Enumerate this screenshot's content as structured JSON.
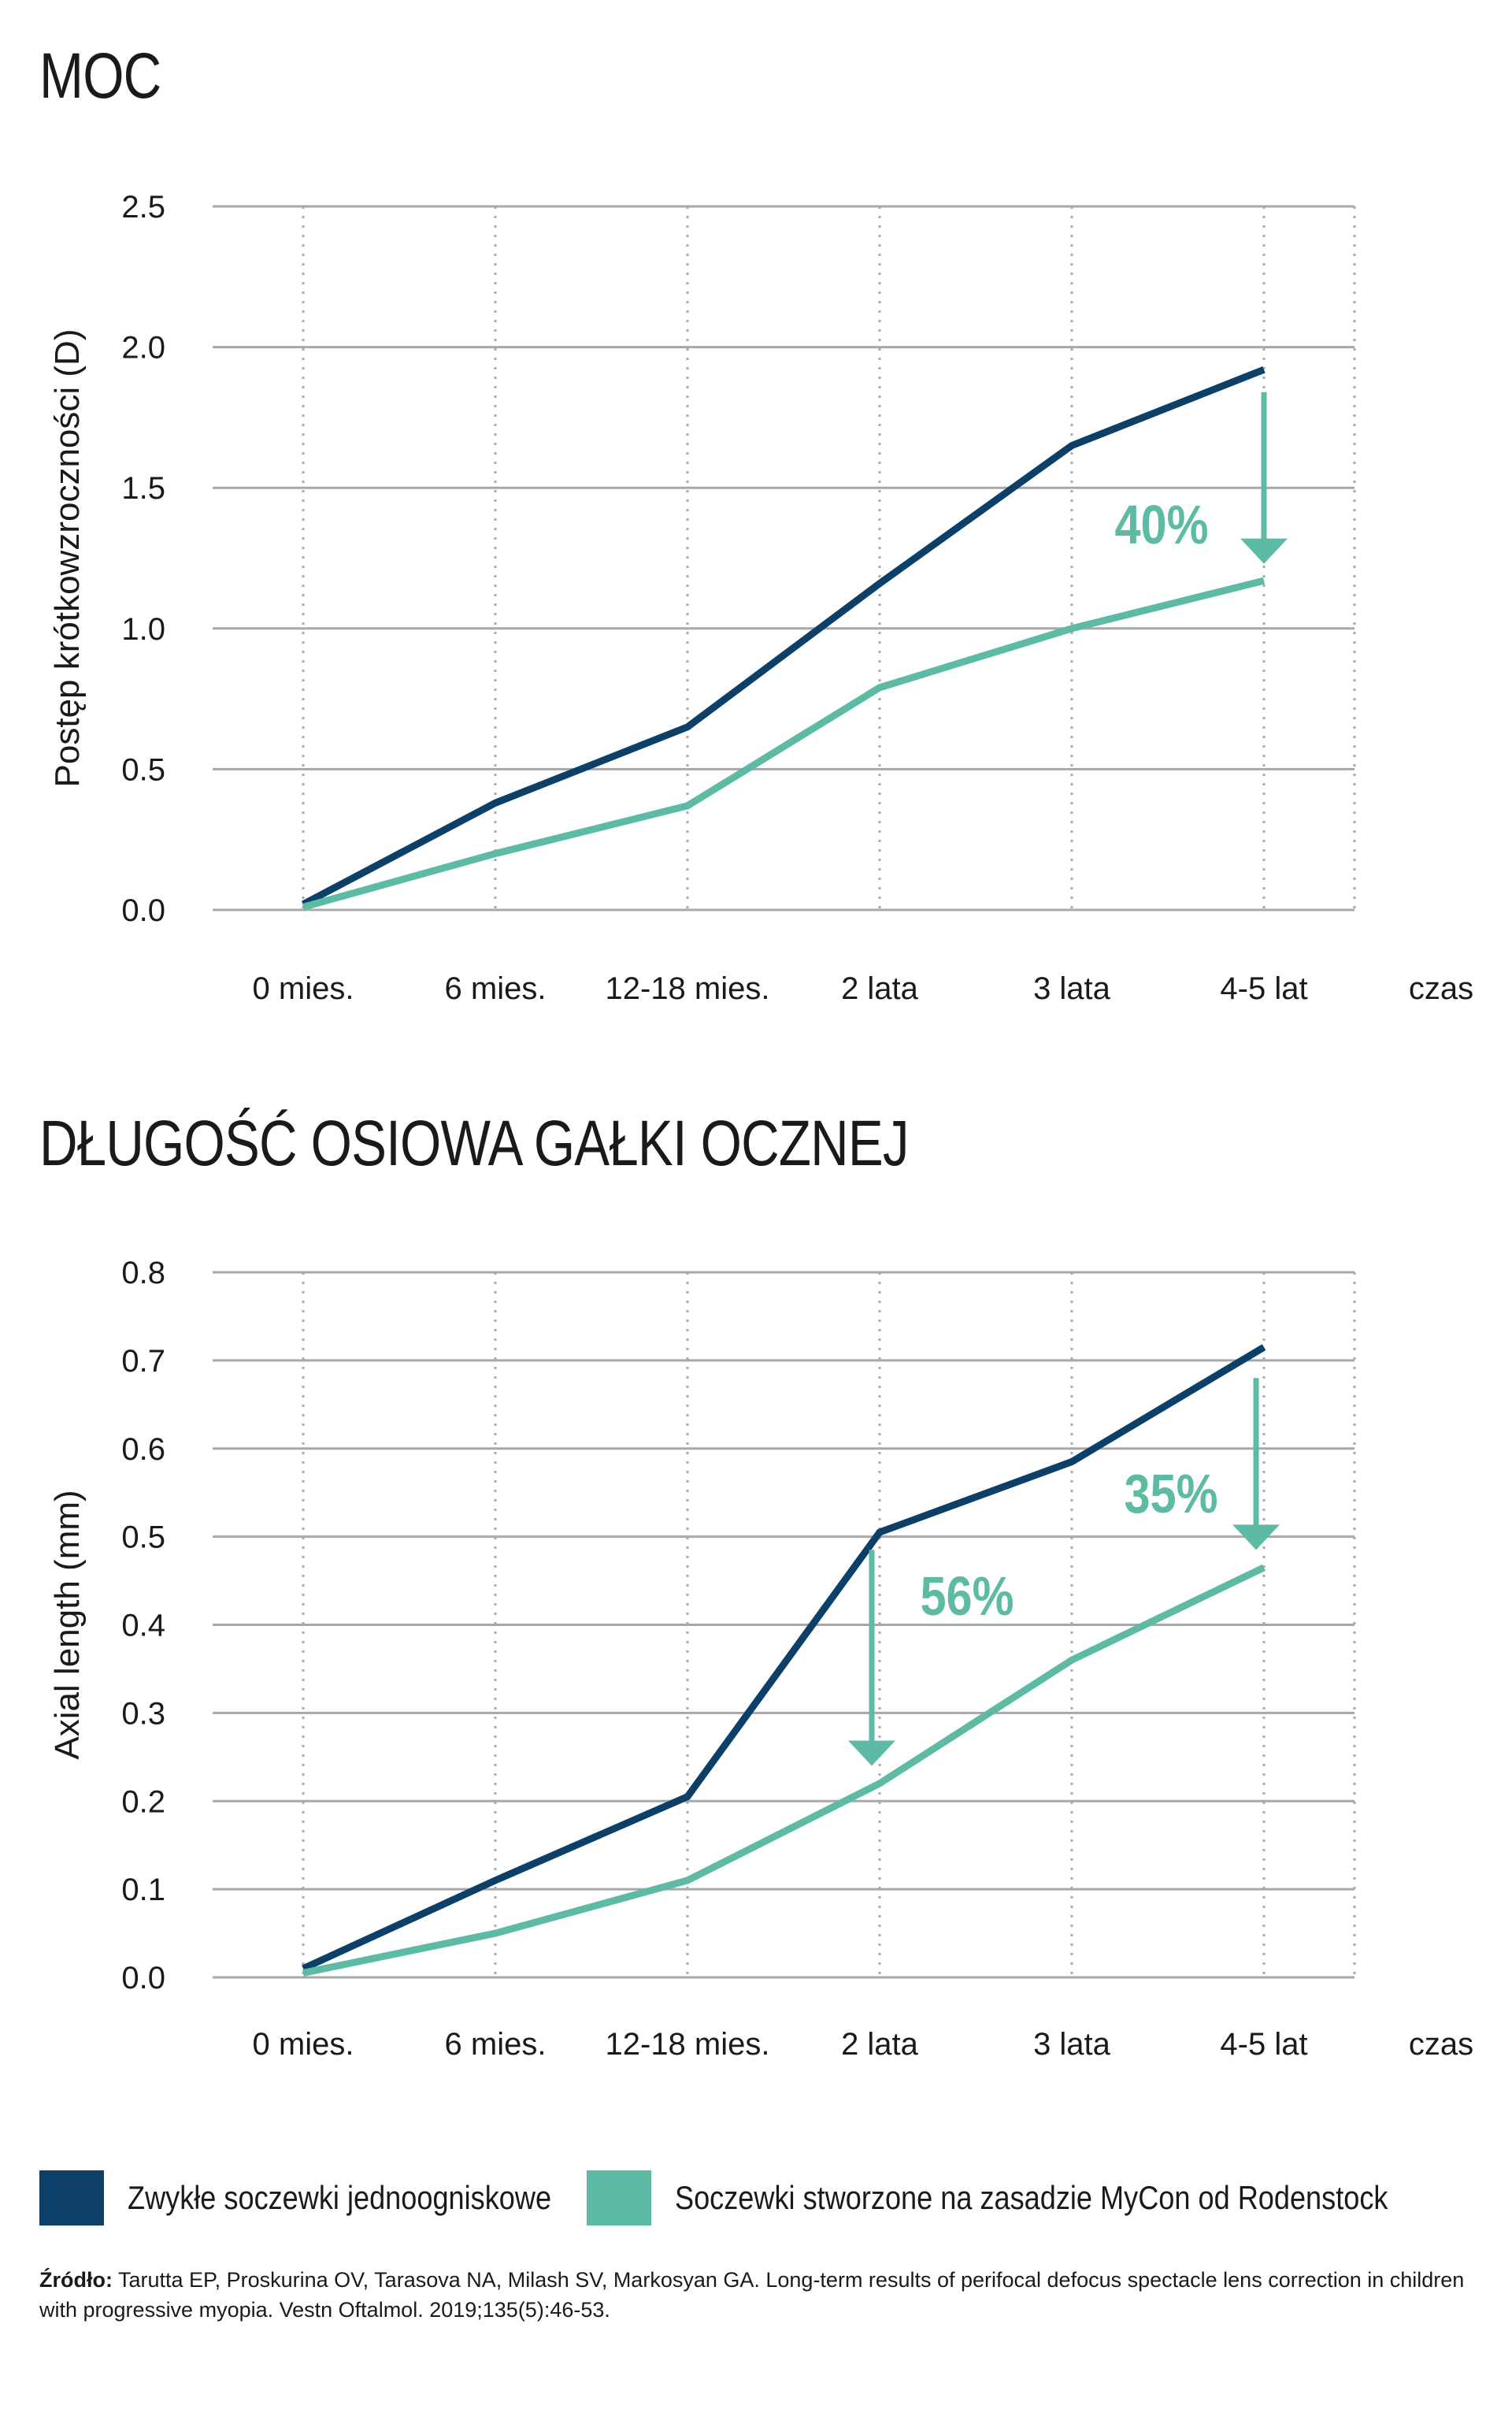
{
  "colors": {
    "standard": "#0c4068",
    "mycon": "#5dbaa4",
    "grid": "#a8a8a8"
  },
  "chart_data": [
    {
      "type": "line",
      "title": "MOC",
      "ylabel": "Postęp krótkowzroczności (D)",
      "xlabel": "czas",
      "categories": [
        "0 mies.",
        "6 mies.",
        "12-18 mies.",
        "2 lata",
        "3 lata",
        "4-5 lat"
      ],
      "y_ticks": [
        "0.0",
        "0.5",
        "1.0",
        "1.5",
        "2.0",
        "2.5"
      ],
      "ylim": [
        0,
        2.5
      ],
      "grid": true,
      "series": [
        {
          "name": "Zwykłe soczewki jednoogniskowe",
          "values": [
            0.02,
            0.38,
            0.65,
            1.16,
            1.65,
            1.92
          ]
        },
        {
          "name": "Soczewki stworzone na zasadzie MyCon od Rodenstock",
          "values": [
            0.01,
            0.2,
            0.37,
            0.79,
            1.0,
            1.17
          ]
        }
      ],
      "annotations": [
        {
          "text": "40%",
          "category": "4-5 lat",
          "from": 1.84,
          "to": 1.23
        }
      ]
    },
    {
      "type": "line",
      "title": "DŁUGOŚĆ OSIOWA GAŁKI OCZNEJ",
      "ylabel": "Axial length (mm)",
      "xlabel": "czas",
      "categories": [
        "0 mies.",
        "6 mies.",
        "12-18 mies.",
        "2 lata",
        "3 lata",
        "4-5 lat"
      ],
      "y_ticks": [
        "0.0",
        "0.1",
        "0.2",
        "0.3",
        "0.4",
        "0.5",
        "0.6",
        "0.7",
        "0.8"
      ],
      "ylim": [
        0,
        0.8
      ],
      "grid": true,
      "series": [
        {
          "name": "Zwykłe soczewki jednoogniskowe",
          "values": [
            0.01,
            0.11,
            0.205,
            0.505,
            0.585,
            0.715
          ]
        },
        {
          "name": "Soczewki stworzone na zasadzie MyCon od Rodenstock",
          "values": [
            0.005,
            0.05,
            0.11,
            0.22,
            0.36,
            0.465
          ]
        }
      ],
      "annotations": [
        {
          "text": "56%",
          "category": "2 lata",
          "from": 0.485,
          "to": 0.24
        },
        {
          "text": "35%",
          "category": "4-5 lat",
          "from": 0.68,
          "to": 0.485
        }
      ]
    }
  ],
  "legend": {
    "items": [
      {
        "label": "Zwykłe soczewki jednoogniskowe"
      },
      {
        "label": "Soczewki stworzone na zasadzie MyCon od Rodenstock"
      }
    ]
  },
  "source": {
    "label": "Źródło:",
    "text": " Tarutta EP, Proskurina OV, Tarasova NA, Milash SV, Markosyan GA. Long-term results of perifocal defocus spectacle lens correction in children with progressive myopia. Vestn Oftalmol. 2019;135(5):46-53."
  }
}
